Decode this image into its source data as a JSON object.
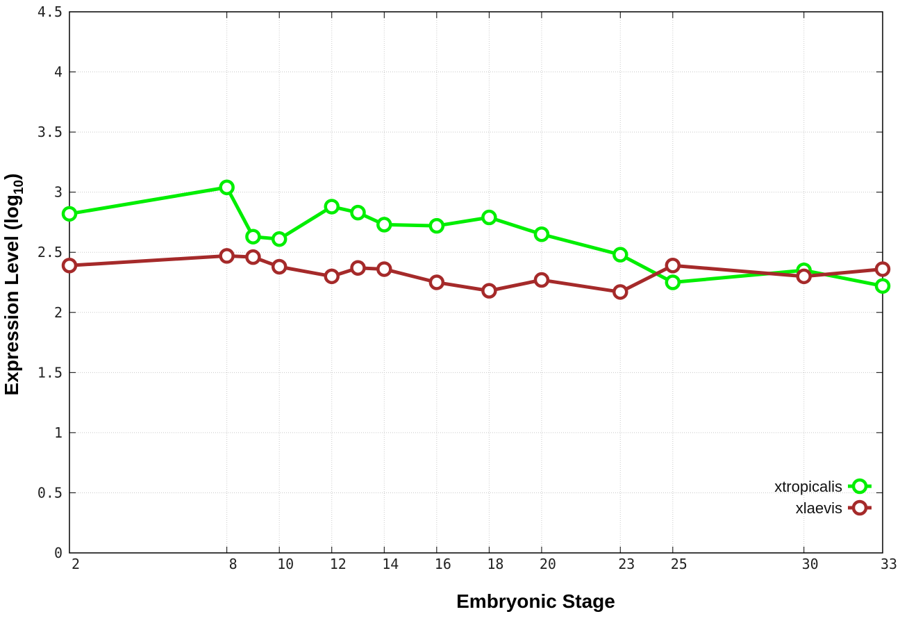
{
  "chart_data": {
    "type": "line",
    "xlabel": "Embryonic Stage",
    "ylabel_main": "Expression Level (log",
    "ylabel_sub": "10",
    "ylabel_close": ")",
    "xlim": [
      2,
      33
    ],
    "ylim": [
      0,
      4.5
    ],
    "grid": true,
    "legend_position": "bottom-right",
    "x_ticks": [
      2,
      8,
      10,
      12,
      14,
      16,
      18,
      20,
      23,
      25,
      30,
      33
    ],
    "x_tick_labels": [
      "2",
      "8",
      "10",
      "12",
      "14",
      "16",
      "18",
      "20",
      "23",
      "25",
      "30",
      "33"
    ],
    "y_ticks": [
      0,
      0.5,
      1,
      1.5,
      2,
      2.5,
      3,
      3.5,
      4,
      4.5
    ],
    "y_tick_labels": [
      "0",
      "0.5",
      "1",
      "1.5",
      "2",
      "2.5",
      "3",
      "3.5",
      "4",
      "4.5"
    ],
    "series": [
      {
        "name": "xtropicalis",
        "color": "#00ee00",
        "x": [
          2,
          8,
          9,
          10,
          12,
          13,
          14,
          16,
          18,
          20,
          23,
          25,
          30,
          33
        ],
        "y": [
          2.82,
          3.04,
          2.63,
          2.61,
          2.88,
          2.83,
          2.73,
          2.72,
          2.79,
          2.65,
          2.48,
          2.25,
          2.35,
          2.22
        ]
      },
      {
        "name": "xlaevis",
        "color": "#a52a2a",
        "x": [
          2,
          8,
          9,
          10,
          12,
          13,
          14,
          16,
          18,
          20,
          23,
          25,
          30,
          33
        ],
        "y": [
          2.39,
          2.47,
          2.46,
          2.38,
          2.3,
          2.37,
          2.36,
          2.25,
          2.18,
          2.27,
          2.17,
          2.39,
          2.3,
          2.36
        ]
      }
    ]
  }
}
